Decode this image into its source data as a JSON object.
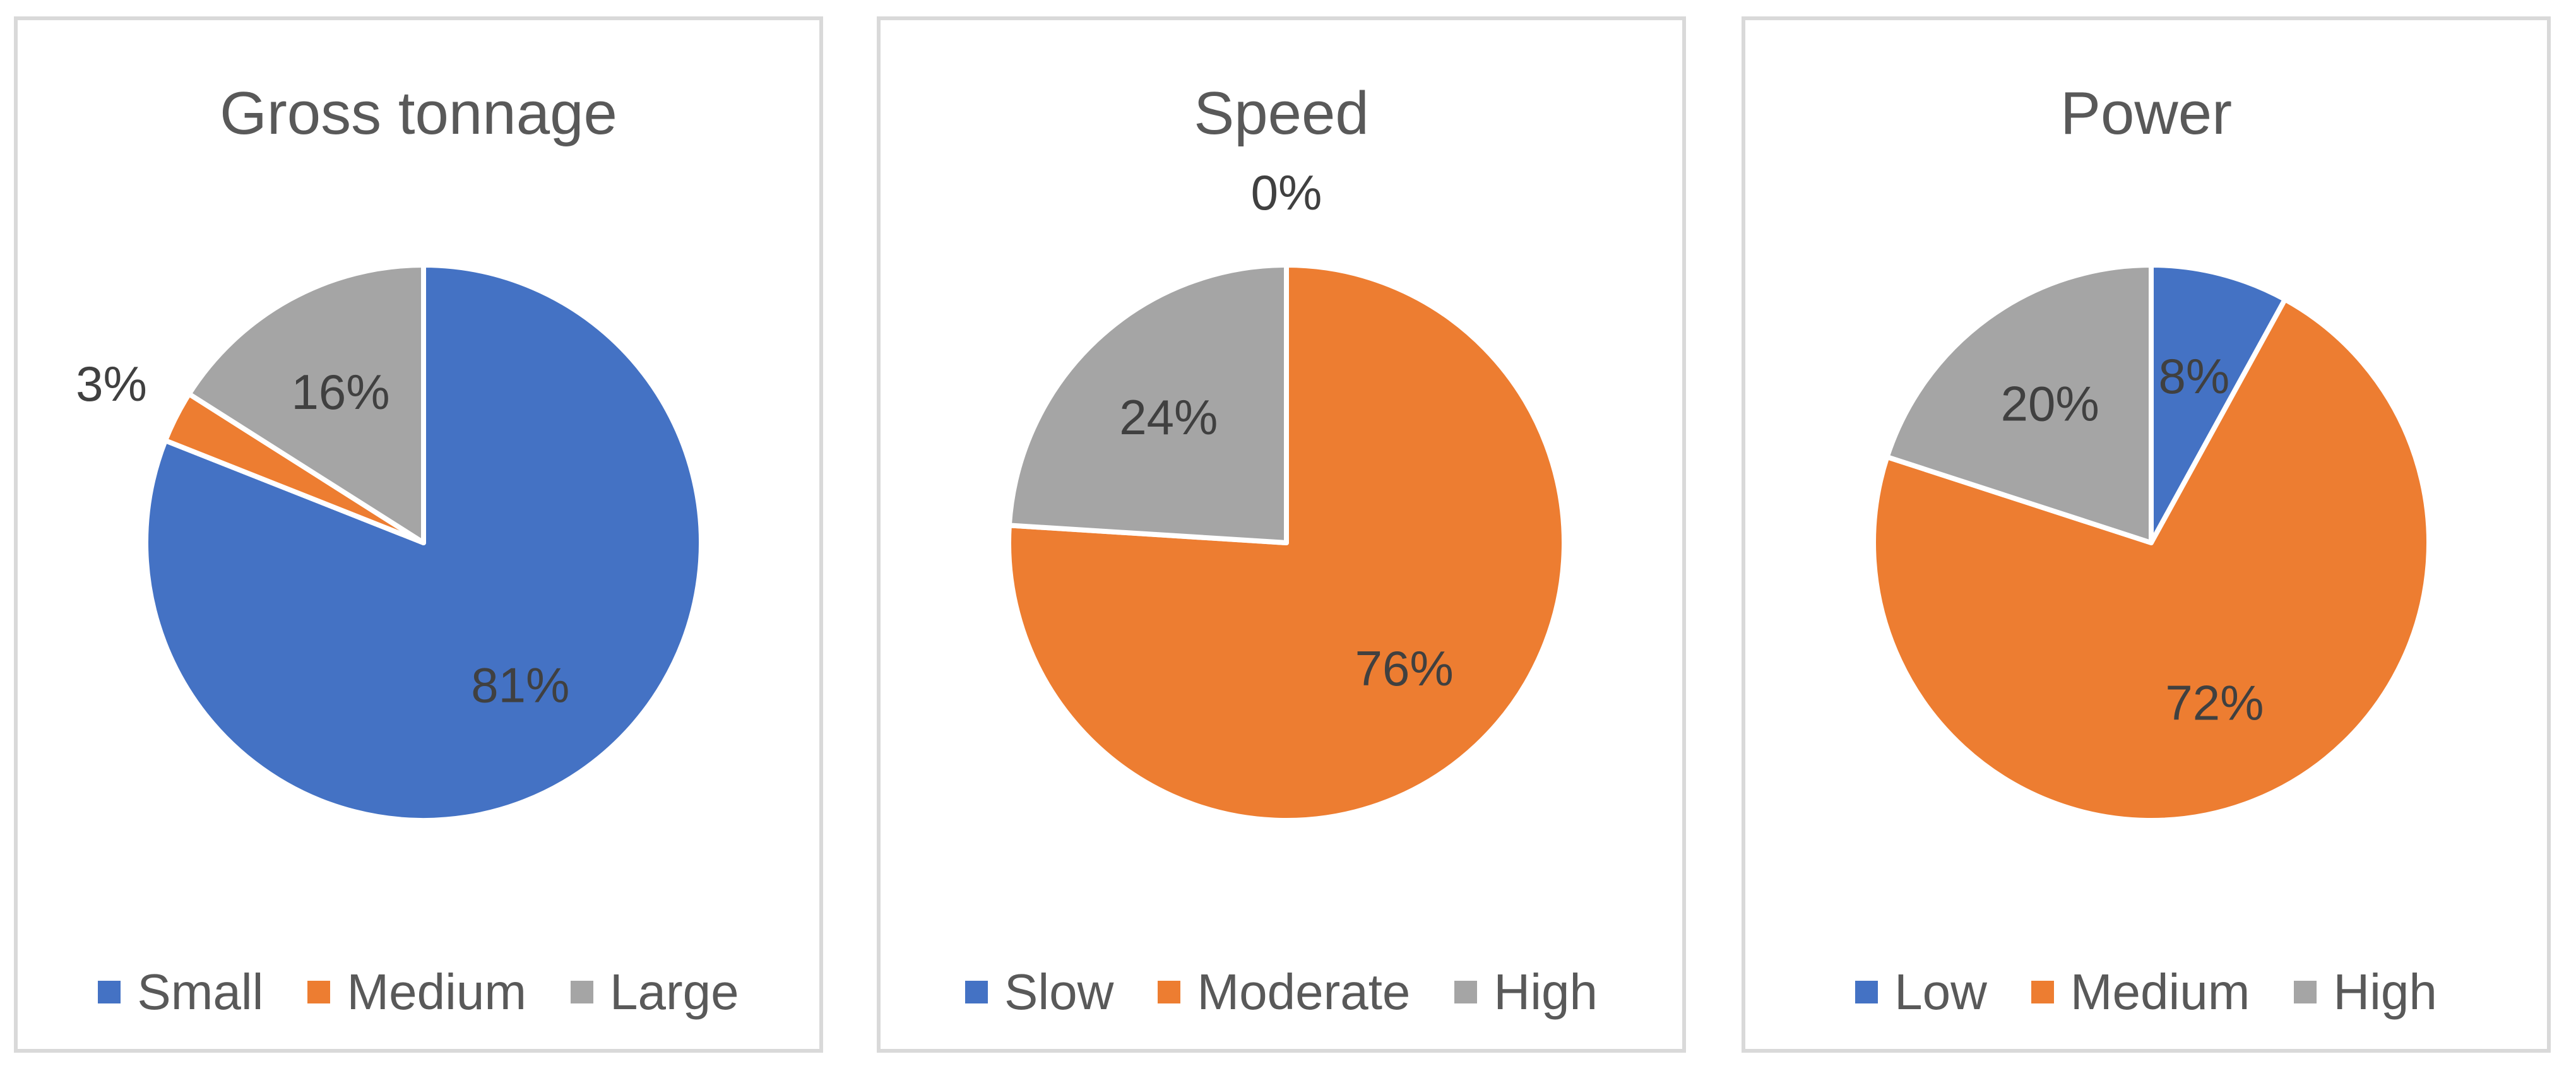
{
  "chart_data": [
    {
      "type": "pie",
      "title": "Gross tonnage",
      "legend_position": "bottom",
      "start_angle_deg": 0,
      "direction": "clockwise",
      "slices": [
        {
          "label": "Small",
          "value": 81,
          "display": "81%",
          "color": "#4472c4",
          "label_placement": "inside"
        },
        {
          "label": "Medium",
          "value": 3,
          "display": "3%",
          "color": "#ed7d31",
          "label_placement": "outside"
        },
        {
          "label": "Large",
          "value": 16,
          "display": "16%",
          "color": "#a5a5a5",
          "label_placement": "inside"
        }
      ]
    },
    {
      "type": "pie",
      "title": "Speed",
      "legend_position": "bottom",
      "start_angle_deg": 0,
      "direction": "clockwise",
      "slices": [
        {
          "label": "Slow",
          "value": 0,
          "display": "0%",
          "color": "#4472c4",
          "label_placement": "outside"
        },
        {
          "label": "Moderate",
          "value": 76,
          "display": "76%",
          "color": "#ed7d31",
          "label_placement": "inside"
        },
        {
          "label": "High",
          "value": 24,
          "display": "24%",
          "color": "#a5a5a5",
          "label_placement": "inside"
        }
      ]
    },
    {
      "type": "pie",
      "title": "Power",
      "legend_position": "bottom",
      "start_angle_deg": 0,
      "direction": "clockwise",
      "slices": [
        {
          "label": "Low",
          "value": 8,
          "display": "8%",
          "color": "#4472c4",
          "label_placement": "inside"
        },
        {
          "label": "Medium",
          "value": 72,
          "display": "72%",
          "color": "#ed7d31",
          "label_placement": "inside"
        },
        {
          "label": "High",
          "value": 20,
          "display": "20%",
          "color": "#a5a5a5",
          "label_placement": "inside"
        }
      ]
    }
  ]
}
